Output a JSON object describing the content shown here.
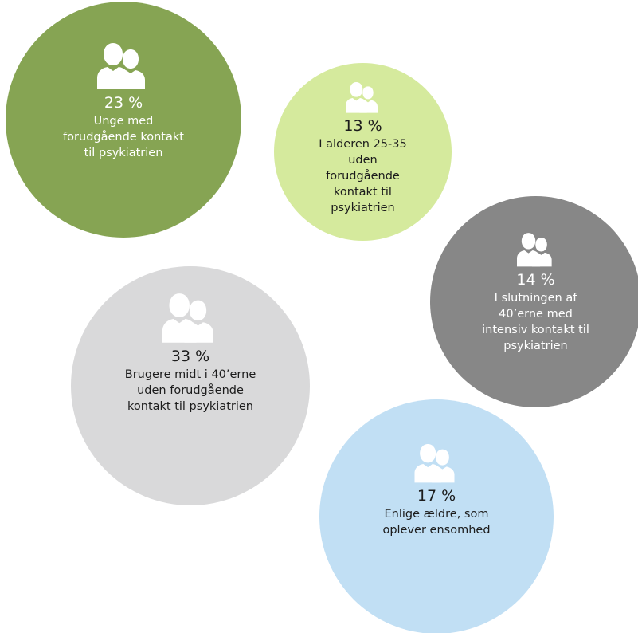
{
  "segments": [
    {
      "percent": "23 %",
      "label_lines": [
        "Unge med",
        "forudgående kontakt",
        "til psykiatrien"
      ],
      "color": "#86a453",
      "text_color": "#ffffff",
      "icon": "people-icon"
    },
    {
      "percent": "13 %",
      "label_lines": [
        "I alderen 25-35",
        "uden",
        "forudgående",
        "kontakt til",
        "psykiatrien"
      ],
      "color": "#d5ea9d",
      "text_color": "#1c1c1c",
      "icon": "people-icon"
    },
    {
      "percent": "14 %",
      "label_lines": [
        "I slutningen af",
        "40’erne med",
        "intensiv kontakt til",
        "psykiatrien"
      ],
      "color": "#878787",
      "text_color": "#ffffff",
      "icon": "people-icon"
    },
    {
      "percent": "33 %",
      "label_lines": [
        "Brugere midt i 40’erne",
        "uden forudgående",
        "kontakt til psykiatrien"
      ],
      "color": "#d9d9da",
      "text_color": "#1c1c1c",
      "icon": "people-icon"
    },
    {
      "percent": "17 %",
      "label_lines": [
        "Enlige ældre, som",
        "oplever ensomhed"
      ],
      "color": "#c1dff4",
      "text_color": "#1c1c1c",
      "icon": "people-icon"
    }
  ]
}
